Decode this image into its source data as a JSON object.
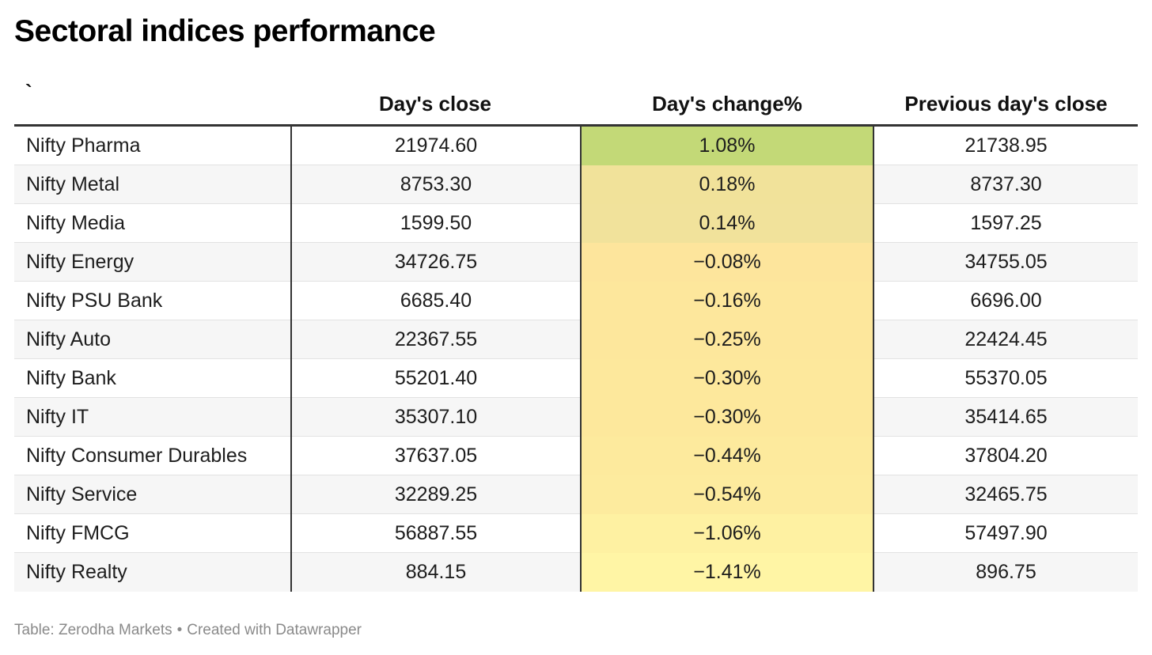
{
  "title": "Sectoral indices performance",
  "columns": [
    "`",
    "Day's close",
    "Day's change%",
    "Previous day's close"
  ],
  "footer": {
    "source": "Table: Zerodha Markets",
    "separator": "•",
    "credit": "Created with Datawrapper"
  },
  "colors": {
    "change_positive_max": "#c3d977",
    "change_mid": "#f2e29a",
    "change_negative": "#fde99c",
    "change_negative_max": "#fff5a5",
    "rule": "#333333",
    "row_alt": "#f6f6f6"
  },
  "chart_data": {
    "type": "table",
    "title": "Sectoral indices performance",
    "columns": [
      "`",
      "Day's close",
      "Day's change%",
      "Previous day's close"
    ],
    "rows": [
      {
        "name": "Nifty Pharma",
        "close": "21974.60",
        "change": "1.08%",
        "change_value": 1.08,
        "prev": "21738.95",
        "bg": "#c3d977"
      },
      {
        "name": "Nifty Metal",
        "close": "8753.30",
        "change": "0.18%",
        "change_value": 0.18,
        "prev": "8737.30",
        "bg": "#f1e29a"
      },
      {
        "name": "Nifty Media",
        "close": "1599.50",
        "change": "0.14%",
        "change_value": 0.14,
        "prev": "1597.25",
        "bg": "#f1e29b"
      },
      {
        "name": "Nifty Energy",
        "close": "34726.75",
        "change": "−0.08%",
        "change_value": -0.08,
        "prev": "34755.05",
        "bg": "#fde59c"
      },
      {
        "name": "Nifty PSU Bank",
        "close": "6685.40",
        "change": "−0.16%",
        "change_value": -0.16,
        "prev": "6696.00",
        "bg": "#fde79c"
      },
      {
        "name": "Nifty Auto",
        "close": "22367.55",
        "change": "−0.25%",
        "change_value": -0.25,
        "prev": "22424.45",
        "bg": "#fde79c"
      },
      {
        "name": "Nifty Bank",
        "close": "55201.40",
        "change": "−0.30%",
        "change_value": -0.3,
        "prev": "55370.05",
        "bg": "#fde89c"
      },
      {
        "name": "Nifty IT",
        "close": "35307.10",
        "change": "−0.30%",
        "change_value": -0.3,
        "prev": "35414.65",
        "bg": "#fde89c"
      },
      {
        "name": "Nifty Consumer Durables",
        "close": "37637.05",
        "change": "−0.44%",
        "change_value": -0.44,
        "prev": "37804.20",
        "bg": "#fdea9d"
      },
      {
        "name": "Nifty Service",
        "close": "32289.25",
        "change": "−0.54%",
        "change_value": -0.54,
        "prev": "32465.75",
        "bg": "#fdeb9e"
      },
      {
        "name": "Nifty FMCG",
        "close": "56887.55",
        "change": "−1.06%",
        "change_value": -1.06,
        "prev": "57497.90",
        "bg": "#fef1a2"
      },
      {
        "name": "Nifty Realty",
        "close": "884.15",
        "change": "−1.41%",
        "change_value": -1.41,
        "prev": "896.75",
        "bg": "#fff5a5"
      }
    ]
  }
}
